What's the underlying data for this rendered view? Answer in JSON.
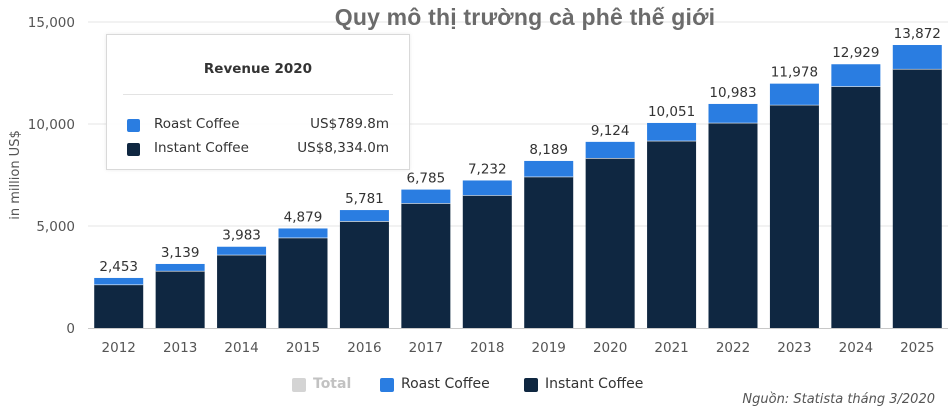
{
  "chart_data": {
    "type": "bar",
    "stacked": true,
    "title": "Quy mô thị trường cà phê thế giới",
    "ylabel": "in million US$",
    "xlabel": "",
    "ylim": [
      0,
      15000
    ],
    "yticks": [
      0,
      5000,
      10000,
      15000
    ],
    "ytick_labels": [
      "0",
      "5,000",
      "10,000",
      "15,000"
    ],
    "grid": true,
    "categories": [
      "2012",
      "2013",
      "2014",
      "2015",
      "2016",
      "2017",
      "2018",
      "2019",
      "2020",
      "2021",
      "2022",
      "2023",
      "2024",
      "2025"
    ],
    "series": [
      {
        "name": "Instant Coffee",
        "color": "#0f2741",
        "values": [
          2130,
          2800,
          3590,
          4430,
          5240,
          6120,
          6510,
          7420,
          8334,
          9180,
          10060,
          10940,
          11850,
          12700
        ]
      },
      {
        "name": "Roast Coffee",
        "color": "#2a7de1",
        "values": [
          323,
          339,
          393,
          449,
          541,
          665,
          722,
          769,
          790,
          871,
          923,
          1038,
          1079,
          1172
        ]
      }
    ],
    "totals": [
      2453,
      3139,
      3983,
      4879,
      5781,
      6785,
      7232,
      8189,
      9124,
      10051,
      10983,
      11978,
      12929,
      13872
    ],
    "total_labels": [
      "2,453",
      "3,139",
      "3,983",
      "4,879",
      "5,781",
      "6,785",
      "7,232",
      "8,189",
      "9,124",
      "10,051",
      "10,983",
      "11,978",
      "12,929",
      "13,872"
    ],
    "legend": {
      "position": "bottom",
      "items": [
        {
          "label": "Total",
          "color": "#d4d4d4",
          "muted": true
        },
        {
          "label": "Roast Coffee",
          "color": "#2a7de1"
        },
        {
          "label": "Instant Coffee",
          "color": "#0f2741"
        }
      ]
    },
    "tooltip": {
      "title": "Revenue 2020",
      "rows": [
        {
          "label": "Roast Coffee",
          "value": "US$789.8m",
          "color": "#2a7de1"
        },
        {
          "label": "Instant Coffee",
          "value": "US$8,334.0m",
          "color": "#0f2741"
        }
      ]
    },
    "source": "Nguồn: Statista tháng 3/2020"
  }
}
